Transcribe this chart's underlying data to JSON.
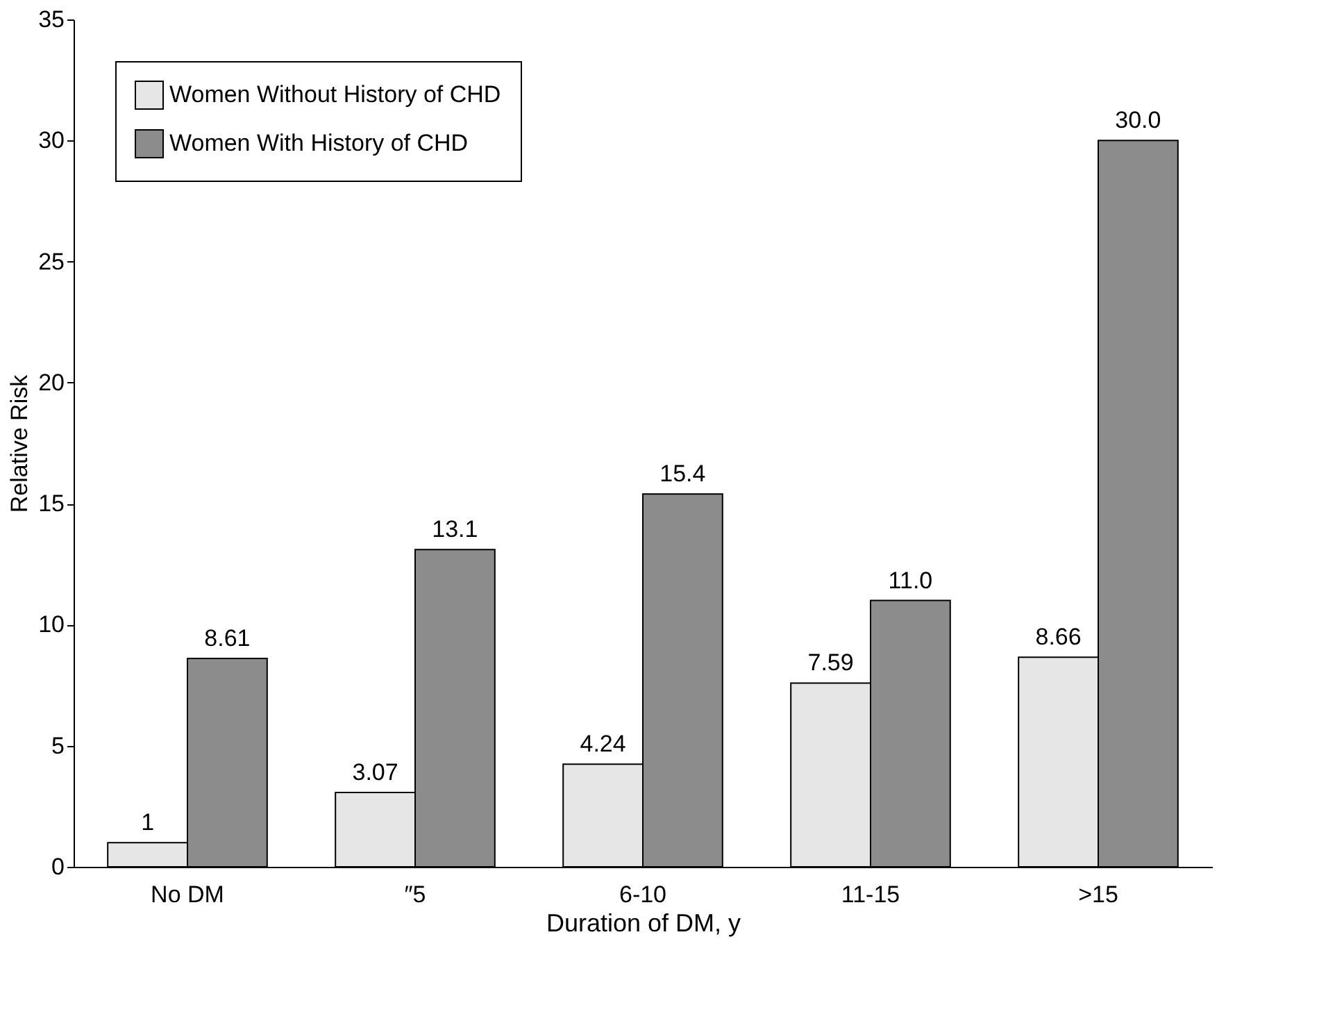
{
  "chart_data": {
    "type": "bar",
    "xlabel": "Duration of DM, y",
    "ylabel": "Relative Risk",
    "categories": [
      "No DM",
      "″5",
      "6-10",
      "11-15",
      ">15"
    ],
    "series": [
      {
        "name": "Women Without History of CHD",
        "color": "#e6e6e6",
        "values": [
          1,
          3.07,
          4.24,
          7.59,
          8.66
        ],
        "value_labels": [
          "1",
          "3.07",
          "4.24",
          "7.59",
          "8.66"
        ]
      },
      {
        "name": "Women With History of CHD",
        "color": "#8c8c8c",
        "values": [
          8.61,
          13.1,
          15.4,
          11.0,
          30.0
        ],
        "value_labels": [
          "8.61",
          "13.1",
          "15.4",
          "11.0",
          "30.0"
        ]
      }
    ],
    "ylim": [
      0,
      35
    ],
    "yticks": [
      0,
      5,
      10,
      15,
      20,
      25,
      30,
      35
    ],
    "grid": false,
    "legend": "top left"
  }
}
